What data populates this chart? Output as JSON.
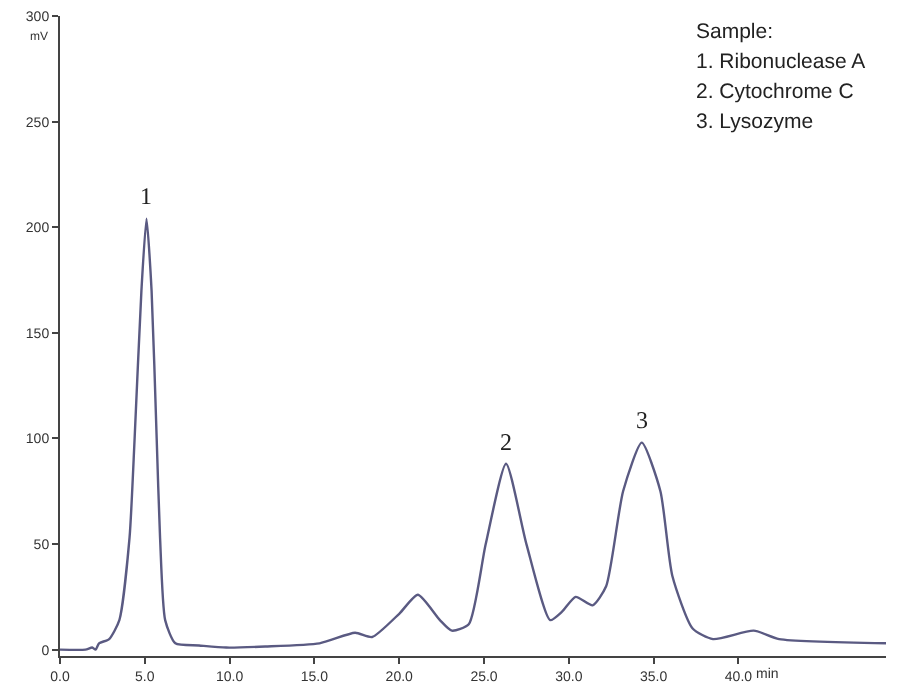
{
  "chart_data": {
    "type": "line",
    "xlabel": "min",
    "ylabel": "mV",
    "x": [
      0,
      1.5,
      1.9,
      2.1,
      2.3,
      2.9,
      3.5,
      4.1,
      4.4,
      4.8,
      5.1,
      5.4,
      5.7,
      5.9,
      6.2,
      6.8,
      8.2,
      9.8,
      12.1,
      15.3,
      17.4,
      18.4,
      20.0,
      21.1,
      22.4,
      23.1,
      24.1,
      25.1,
      26.3,
      27.5,
      28.9,
      29.6,
      30.4,
      31.4,
      32.2,
      33.2,
      34.3,
      35.4,
      36.1,
      37.3,
      38.5,
      40.9,
      42.4,
      48.7
    ],
    "series": [
      {
        "color": "#5a5a82",
        "values": [
          0,
          0,
          1,
          0,
          3,
          5,
          14,
          53,
          100,
          170,
          204,
          170,
          100,
          53,
          14,
          3,
          2,
          1,
          1.5,
          3,
          8,
          6,
          17,
          26,
          14,
          9,
          12,
          50,
          88,
          50,
          14,
          18,
          25,
          21,
          30,
          75,
          98,
          75,
          35,
          10,
          5,
          9,
          5,
          3
        ]
      }
    ],
    "xlim": [
      0,
      48.7
    ],
    "ylim": [
      -3,
      300
    ],
    "xticks": [
      {
        "value": 0,
        "label": "0.0"
      },
      {
        "value": 5,
        "label": "5.0"
      },
      {
        "value": 10,
        "label": "10.0"
      },
      {
        "value": 15,
        "label": "15.0"
      },
      {
        "value": 20,
        "label": "20.0"
      },
      {
        "value": 25,
        "label": "25.0"
      },
      {
        "value": 30,
        "label": "30.0"
      },
      {
        "value": 35,
        "label": "35.0"
      },
      {
        "value": 40,
        "label": "40.0"
      }
    ],
    "yticks": [
      0,
      50,
      100,
      150,
      200,
      250,
      300
    ],
    "grid": false,
    "marker": "none",
    "line_style": "solid",
    "annotations": [
      {
        "text": "1",
        "x": 5.1,
        "y": 204
      },
      {
        "text": "2",
        "x": 26.3,
        "y": 88
      },
      {
        "text": "3",
        "x": 34.3,
        "y": 98
      },
      "Sample:",
      "1. Ribonuclease A",
      "2. Cytochrome C",
      "3. Lysozyme"
    ]
  }
}
